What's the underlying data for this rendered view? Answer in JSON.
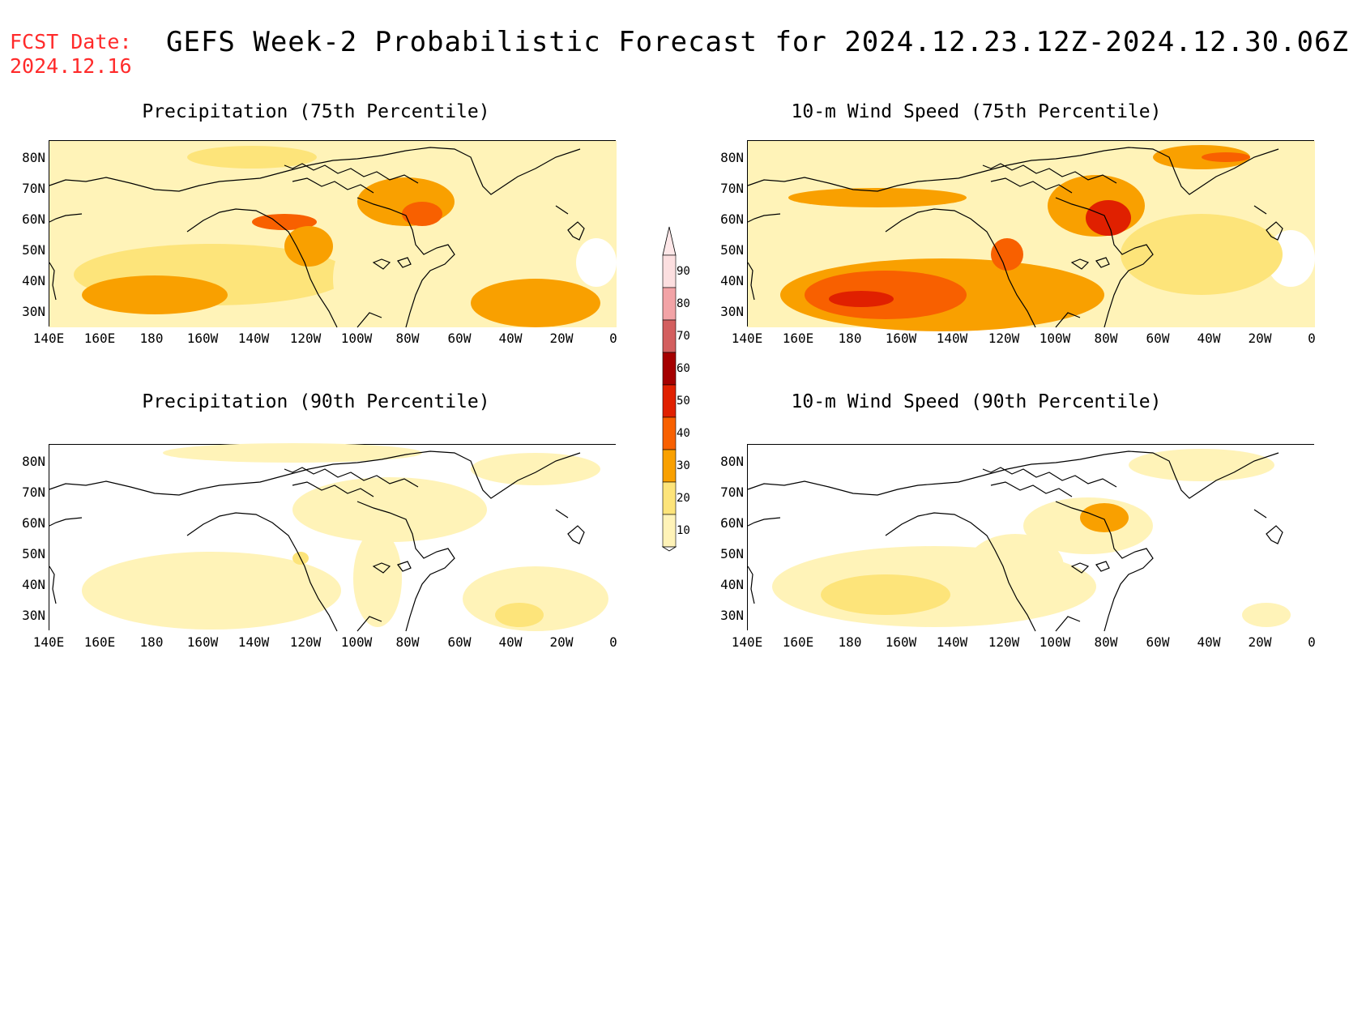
{
  "header": {
    "fcst_line1": "FCST Date:",
    "fcst_line2": "2024.12.16",
    "title": "GEFS Week-2 Probabilistic Forecast for 2024.12.23.12Z-2024.12.30.06Z",
    "fcst_color": "#ff2a2a"
  },
  "panels": [
    {
      "id": "precip-75",
      "title": "Precipitation (75th Percentile)",
      "base_level": 20
    },
    {
      "id": "wind-75",
      "title": "10-m Wind Speed (75th Percentile)",
      "base_level": 20
    },
    {
      "id": "precip-90",
      "title": "Precipitation (90th Percentile)",
      "base_level": 0
    },
    {
      "id": "wind-90",
      "title": "10-m Wind Speed (90th Percentile)",
      "base_level": 0
    }
  ],
  "axes": {
    "lat_labels": [
      "80N",
      "70N",
      "60N",
      "50N",
      "40N",
      "30N"
    ],
    "lon_labels": [
      "140E",
      "160E",
      "180",
      "160W",
      "140W",
      "120W",
      "100W",
      "80W",
      "60W",
      "40W",
      "20W",
      "0"
    ]
  },
  "colorbar": {
    "labels": [
      "90",
      "80",
      "70",
      "60",
      "50",
      "40",
      "30",
      "20",
      "10"
    ],
    "colors": [
      "#fcdfe0",
      "#f2a3a6",
      "#d35f5f",
      "#a50000",
      "#e02000",
      "#f86000",
      "#f9a000",
      "#fde47a",
      "#fff3b8"
    ]
  },
  "map_levels": {
    "0": "#ffffff",
    "20": "#fff3b8",
    "30": "#fde47a",
    "40": "#f9a000",
    "50": "#f86000",
    "60": "#e02000",
    "70": "#a50000"
  }
}
